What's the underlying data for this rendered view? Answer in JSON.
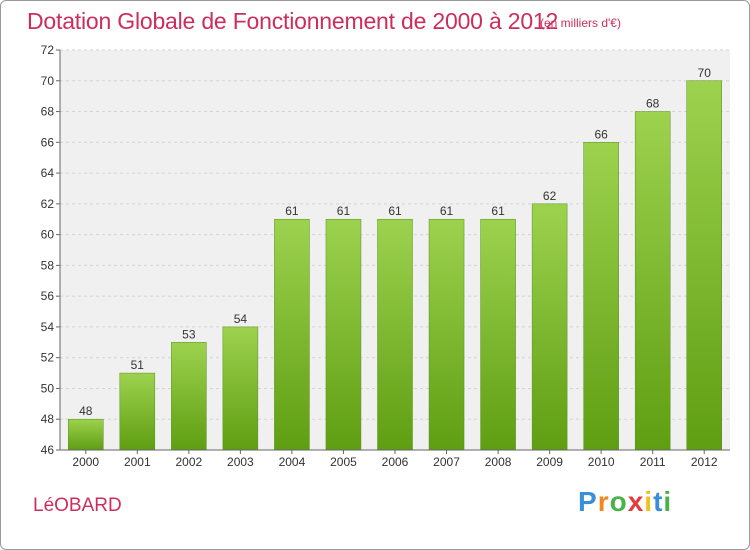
{
  "title": "Dotation Globale de Fonctionnement de 2000 à 2012",
  "subtitle": "(en milliers d'€)",
  "commune": "LéOBARD",
  "logo": {
    "letters": [
      "P",
      "r",
      "o",
      "x",
      "i",
      "t",
      "i"
    ],
    "colors": [
      "#3a8fd8",
      "#f08a1e",
      "#49b34a",
      "#e23c3c",
      "#f2c21b",
      "#3a8fd8",
      "#49b34a"
    ]
  },
  "chart_data": {
    "type": "bar",
    "categories": [
      "2000",
      "2001",
      "2002",
      "2003",
      "2004",
      "2005",
      "2006",
      "2007",
      "2008",
      "2009",
      "2010",
      "2011",
      "2012"
    ],
    "values": [
      48,
      51,
      53,
      54,
      61,
      61,
      61,
      61,
      61,
      62,
      66,
      68,
      70
    ],
    "ylim": [
      46,
      72
    ],
    "yticks": [
      46,
      48,
      50,
      52,
      54,
      56,
      58,
      60,
      62,
      64,
      66,
      68,
      70,
      72
    ],
    "grid": true,
    "bar_color": "#7cbf2e"
  }
}
